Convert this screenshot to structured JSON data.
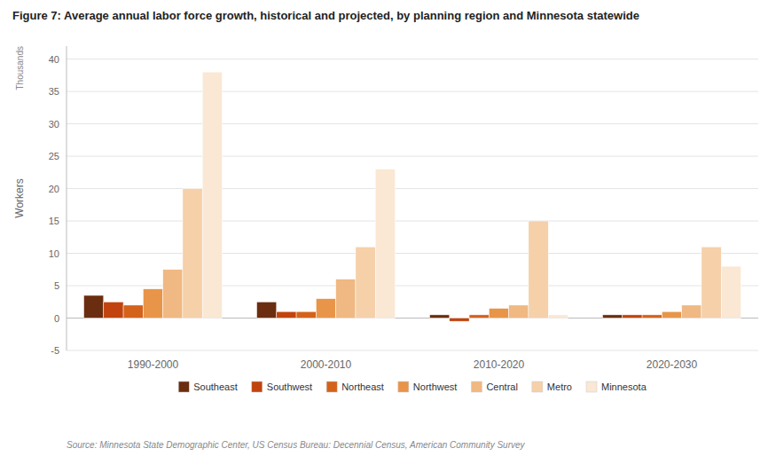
{
  "chart_data": {
    "type": "bar",
    "title": "Figure 7: Average annual labor force growth, historical and projected, by planning region and Minnesota statewide",
    "ylabel": "Workers",
    "annotations": [
      "Thousands"
    ],
    "source": "Source: Minnesota State Demographic Center, US Census Bureau: Decennial Census, American Community Survey",
    "categories": [
      "1990-2000",
      "2000-2010",
      "2010-2020",
      "2020-2030"
    ],
    "series": [
      {
        "name": "Southeast",
        "color": "#6b2d0f",
        "values": [
          3.5,
          2.5,
          0.5,
          0.5
        ]
      },
      {
        "name": "Southwest",
        "color": "#c1440e",
        "values": [
          2.5,
          1.0,
          -0.5,
          0.5
        ]
      },
      {
        "name": "Northeast",
        "color": "#d4621a",
        "values": [
          2.0,
          1.0,
          0.5,
          0.5
        ]
      },
      {
        "name": "Northwest",
        "color": "#e8954a",
        "values": [
          4.5,
          3.0,
          1.5,
          1.0
        ]
      },
      {
        "name": "Central",
        "color": "#f0b882",
        "values": [
          7.5,
          6.0,
          2.0,
          2.0
        ]
      },
      {
        "name": "Metro",
        "color": "#f5d0a9",
        "values": [
          20.0,
          11.0,
          15.0,
          11.0
        ]
      },
      {
        "name": "Minnesota",
        "color": "#fae8d4",
        "values": [
          38.0,
          23.0,
          0.5,
          8.0
        ]
      }
    ],
    "ylim": [
      -5,
      42
    ],
    "yticks": [
      -5,
      0,
      5,
      10,
      15,
      20,
      25,
      30,
      35,
      40
    ],
    "grid": true,
    "legend": "bottom"
  }
}
